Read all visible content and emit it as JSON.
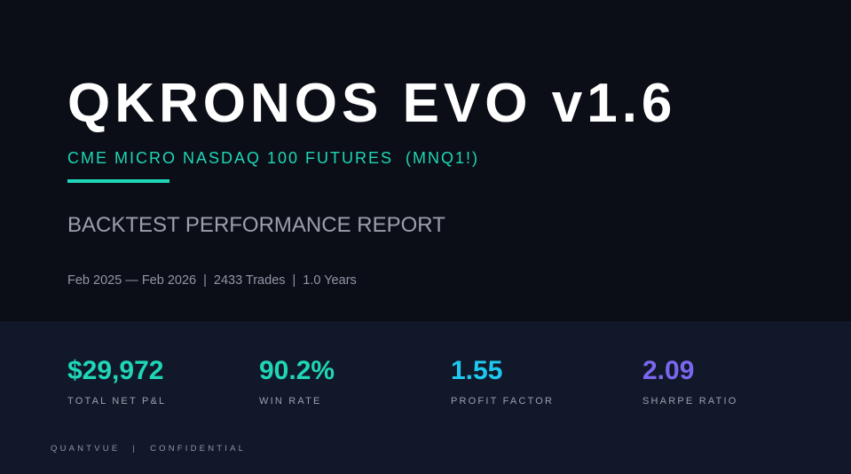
{
  "title": "QKRONOS EVO v1.6",
  "subtitle": "CME MICRO NASDAQ 100 FUTURES  (MNQ1!)",
  "report_title": "BACKTEST PERFORMANCE REPORT",
  "meta": {
    "date_range": "Feb 2025 — Feb 2026",
    "separator": "|",
    "trades": "2433 Trades",
    "duration": "1.0 Years"
  },
  "stats": [
    {
      "value": "$29,972",
      "label": "TOTAL NET P&L",
      "color": "#1fd6b7"
    },
    {
      "value": "90.2%",
      "label": "WIN RATE",
      "color": "#1fd6b7"
    },
    {
      "value": "1.55",
      "label": "PROFIT FACTOR",
      "color": "#1ec8f0"
    },
    {
      "value": "2.09",
      "label": "SHARPE RATIO",
      "color": "#7b66f0"
    }
  ],
  "footer": {
    "brand": "QUANTVUE",
    "separator": "|",
    "classification": "CONFIDENTIAL"
  },
  "colors": {
    "background": "#0b0e17",
    "stats_background": "#111829",
    "accent": "#1fd6b7"
  }
}
